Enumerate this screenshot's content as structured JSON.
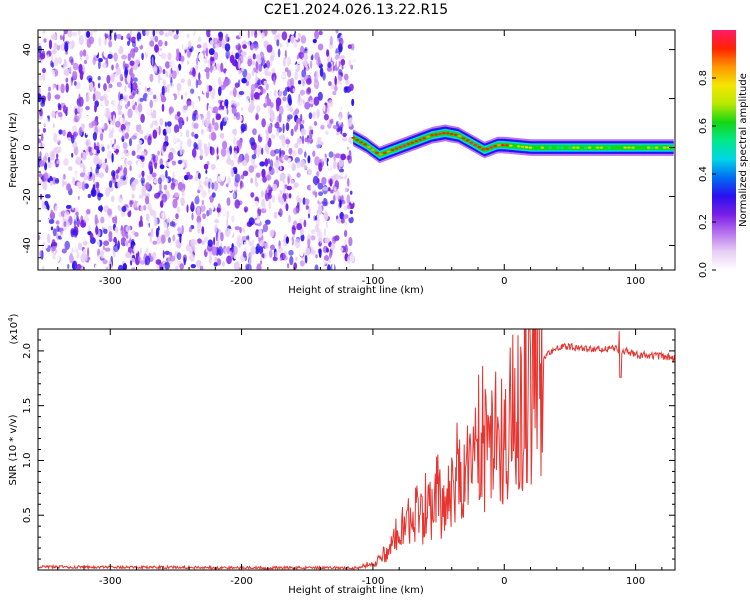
{
  "title": "C2E1.2024.026.13.22.R15",
  "colors": {
    "snr_line": "#e8332f",
    "colormap": [
      "#ffffff",
      "#e7cdf5",
      "#b873ee",
      "#7a1fe6",
      "#2a10f0",
      "#006cf2",
      "#00d6e6",
      "#00e88a",
      "#15d615",
      "#b8e800",
      "#f5e600",
      "#ff9600",
      "#ff2200",
      "#ff1a6a"
    ]
  },
  "chart_data": [
    {
      "type": "heatmap",
      "xlabel": "Height of straight line (km)",
      "ylabel": "Frequency (Hz)",
      "xlim": [
        -355,
        130
      ],
      "ylim": [
        -50,
        48
      ],
      "xticks": [
        -300,
        -200,
        -100,
        0,
        100
      ],
      "xtick_labels": [
        "-300",
        "-200",
        "-100",
        "0",
        "100"
      ],
      "yticks": [
        -40,
        -20,
        0,
        20,
        40
      ],
      "ytick_labels": [
        "-40",
        "-20",
        "0",
        "20",
        "40"
      ],
      "colorbar": {
        "label": "Normalized spectral amplitude",
        "range": [
          0,
          1
        ],
        "ticks": [
          0.0,
          0.2,
          0.4,
          0.6,
          0.8
        ],
        "tick_labels": [
          "0.0",
          "0.2",
          "0.4",
          "0.6",
          "0.8"
        ]
      },
      "noise_region_x": [
        -355,
        -115
      ],
      "signal_trace": {
        "x": [
          -115,
          -105,
          -95,
          -85,
          -75,
          -65,
          -55,
          -45,
          -35,
          -25,
          -15,
          -5,
          0,
          20,
          60,
          100,
          130
        ],
        "freq": [
          4,
          1,
          -3,
          -1,
          1,
          3,
          5,
          6,
          5,
          2,
          -1,
          1,
          1,
          0,
          0,
          0,
          0
        ]
      }
    },
    {
      "type": "line",
      "xlabel": "Height of straight line (km)",
      "ylabel": "SNR (10 * v/v)",
      "multiplier": "(x10^4)",
      "xlim": [
        -355,
        130
      ],
      "ylim": [
        0,
        22000
      ],
      "xticks": [
        -300,
        -200,
        -100,
        0,
        100
      ],
      "xtick_labels": [
        "-300",
        "-200",
        "-100",
        "0",
        "100"
      ],
      "yticks": [
        5000,
        10000,
        15000,
        20000
      ],
      "ytick_labels": [
        "0.5",
        "1.0",
        "1.5",
        "2.0"
      ],
      "series": [
        {
          "x": [
            -355,
            -300,
            -250,
            -200,
            -150,
            -110,
            -100,
            -90,
            -80,
            -70,
            -60,
            -50,
            -40,
            -30,
            -20,
            -10,
            0,
            10,
            20,
            30,
            40,
            50,
            60,
            70,
            80,
            90,
            100,
            110,
            120,
            130
          ],
          "values": [
            300,
            250,
            250,
            200,
            200,
            200,
            600,
            1600,
            3000,
            4000,
            5000,
            6000,
            7000,
            8500,
            10000,
            11500,
            13000,
            14500,
            17000,
            19500,
            20300,
            20400,
            20200,
            20100,
            20200,
            20100,
            19700,
            19600,
            19500,
            19300
          ]
        }
      ]
    }
  ]
}
